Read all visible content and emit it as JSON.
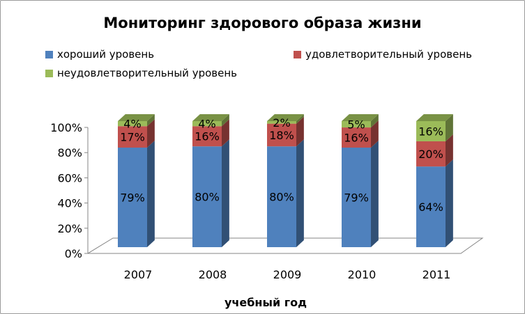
{
  "chart_data": {
    "type": "bar",
    "stacked": true,
    "percent": true,
    "title": "Мониторинг здорового образа жизни",
    "xlabel": "учебный год",
    "ylabel": "",
    "categories": [
      "2007",
      "2008",
      "2009",
      "2010",
      "2011"
    ],
    "yticks": [
      "0%",
      "20%",
      "40%",
      "60%",
      "80%",
      "100%"
    ],
    "ylim": [
      0,
      100
    ],
    "legend_position": "top",
    "series": [
      {
        "name": "хороший уровень",
        "values": [
          79,
          80,
          80,
          79,
          64
        ],
        "labels": [
          "79%",
          "80%",
          "80%",
          "79%",
          "64%"
        ],
        "color": "#4F81BD"
      },
      {
        "name": "удовлетворительный уровень",
        "values": [
          17,
          16,
          18,
          16,
          20
        ],
        "labels": [
          "17%",
          "16%",
          "18%",
          "16%",
          "20%"
        ],
        "color": "#C0504D"
      },
      {
        "name": "неудовлетворительный уровень",
        "values": [
          4,
          4,
          2,
          5,
          16
        ],
        "labels": [
          "4%",
          "4%",
          "2%",
          "5%",
          "16%"
        ],
        "color": "#9BBB59"
      }
    ]
  }
}
